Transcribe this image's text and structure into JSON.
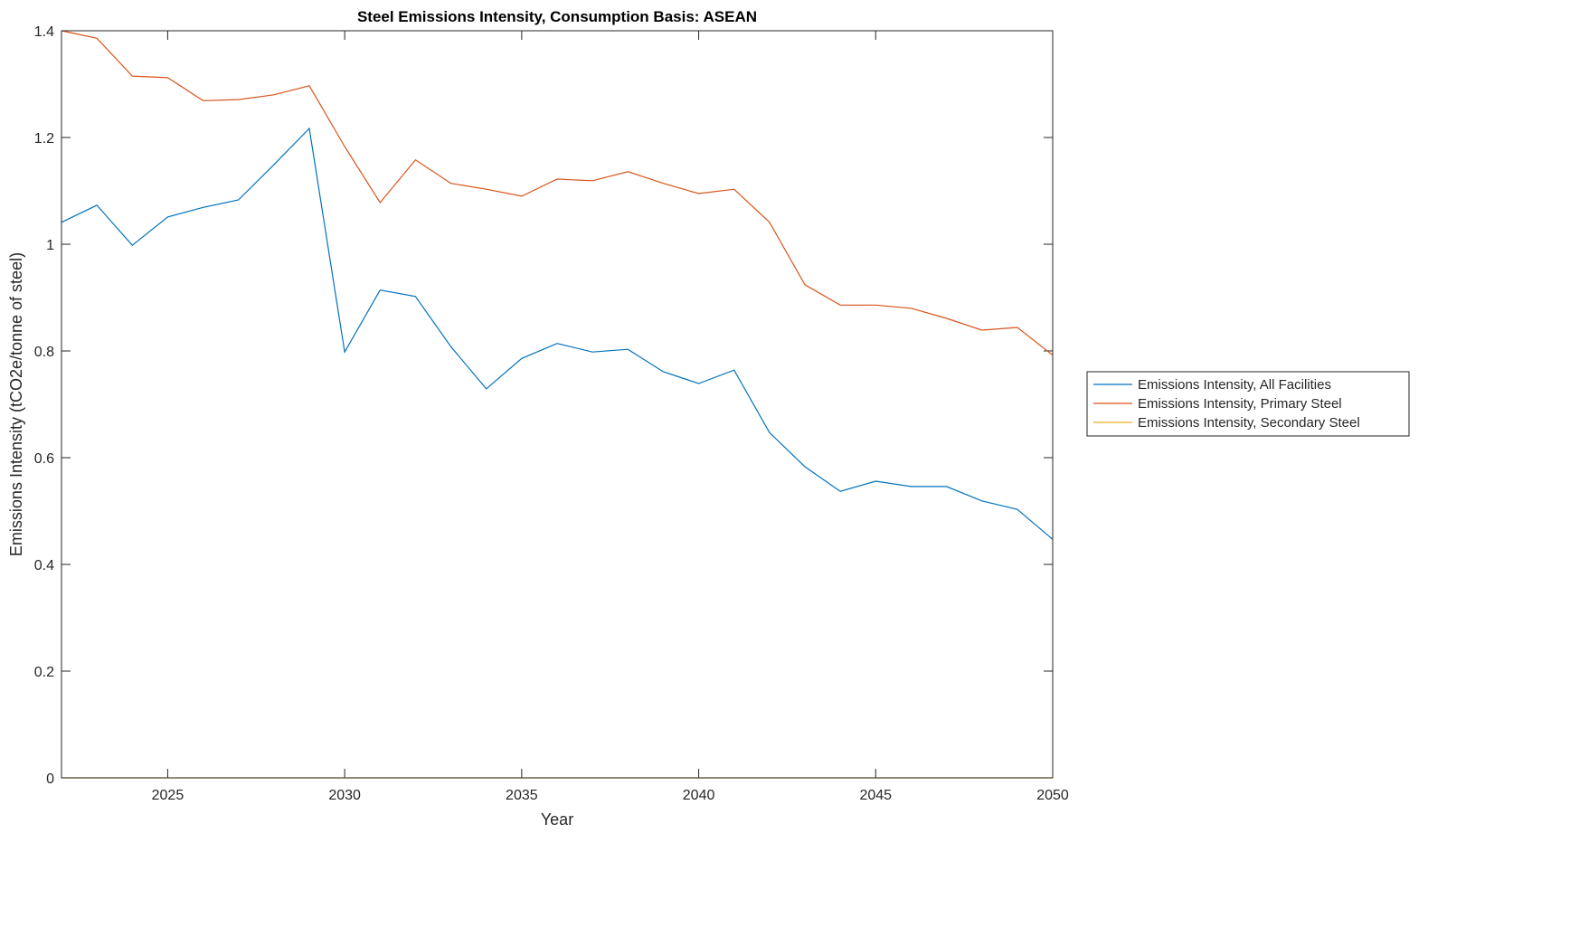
{
  "chart_data": {
    "type": "line",
    "title": "Steel Emissions Intensity, Consumption Basis: ASEAN",
    "xlabel": "Year",
    "ylabel": "Emissions Intensity (tCO2e/tonne of steel)",
    "xlim": [
      2022,
      2050
    ],
    "ylim": [
      0,
      1.4
    ],
    "xticks": [
      2025,
      2030,
      2035,
      2040,
      2045,
      2050
    ],
    "yticks": [
      0,
      0.2,
      0.4,
      0.6,
      0.8,
      1,
      1.2,
      1.4
    ],
    "ytick_labels": [
      "0",
      "0.2",
      "0.4",
      "0.6",
      "0.8",
      "1",
      "1.2",
      "1.4"
    ],
    "grid": false,
    "legend_placement": "outside-right",
    "x": [
      2022,
      2023,
      2024,
      2025,
      2026,
      2027,
      2028,
      2029,
      2030,
      2031,
      2032,
      2033,
      2034,
      2035,
      2036,
      2037,
      2038,
      2039,
      2040,
      2041,
      2042,
      2043,
      2044,
      2045,
      2046,
      2047,
      2048,
      2049,
      2050
    ],
    "series": [
      {
        "name": "Emissions Intensity, All Facilities",
        "color": "#0072BD",
        "values": [
          1.041,
          1.073,
          0.998,
          1.051,
          1.069,
          1.083,
          1.149,
          1.217,
          0.798,
          0.914,
          0.902,
          0.808,
          0.729,
          0.786,
          0.814,
          0.798,
          0.803,
          0.761,
          0.739,
          0.764,
          0.647,
          0.583,
          0.537,
          0.556,
          0.546,
          0.546,
          0.519,
          0.503,
          0.447
        ]
      },
      {
        "name": "Emissions Intensity, Primary Steel",
        "color": "#D95319",
        "values": [
          1.4,
          1.386,
          1.315,
          1.312,
          1.269,
          1.271,
          1.28,
          1.297,
          1.183,
          1.078,
          1.158,
          1.114,
          1.103,
          1.09,
          1.122,
          1.119,
          1.136,
          1.114,
          1.095,
          1.103,
          1.041,
          0.924,
          0.886,
          0.886,
          0.88,
          0.861,
          0.839,
          0.844,
          0.792
        ]
      },
      {
        "name": "Emissions Intensity, Secondary Steel",
        "color": "#EDB120",
        "values": [
          0,
          0,
          0,
          0,
          0,
          0,
          0,
          0,
          0,
          0,
          0,
          0,
          0,
          0,
          0,
          0,
          0,
          0,
          0,
          0,
          0,
          0,
          0,
          0,
          0,
          0,
          0,
          0,
          0
        ]
      }
    ]
  }
}
